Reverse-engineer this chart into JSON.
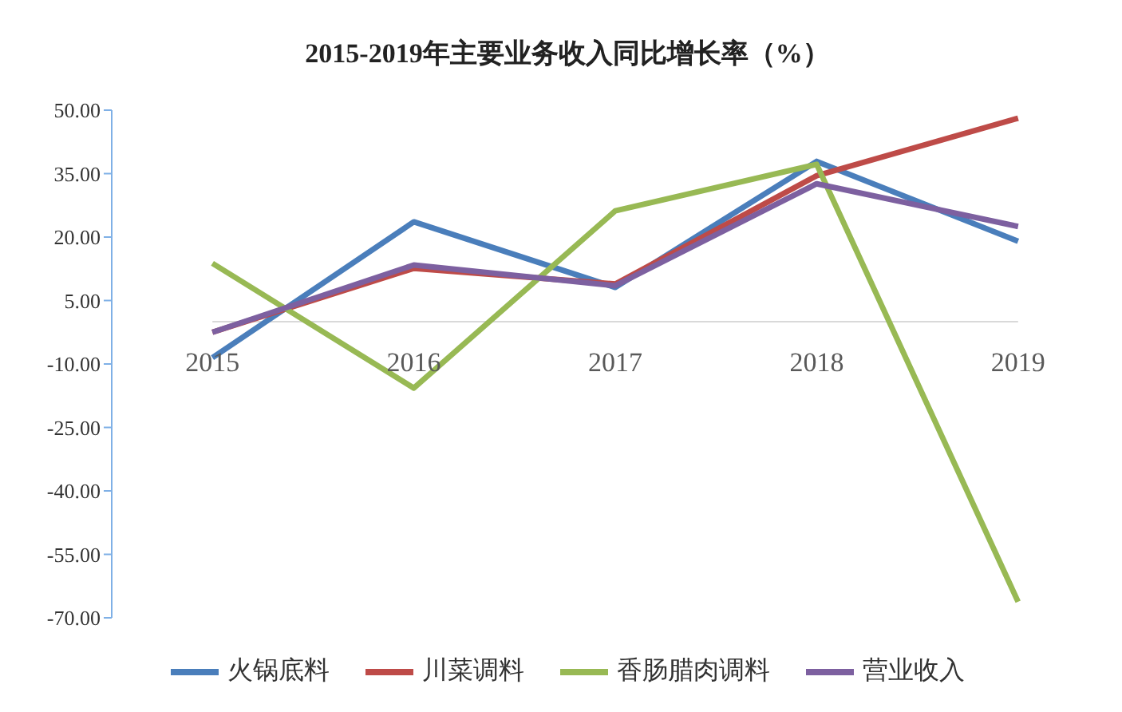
{
  "chart_data": {
    "type": "line",
    "title": "2015-2019年主要业务收入同比增长率（%）",
    "categories": [
      "2015",
      "2016",
      "2017",
      "2018",
      "2019"
    ],
    "series": [
      {
        "name": "火锅底料",
        "color": "#4a7ebb",
        "values": [
          -8.5,
          23.6,
          8.1,
          37.9,
          19
        ]
      },
      {
        "name": "川菜调料",
        "color": "#be4b48",
        "values": [
          -2.5,
          12.6,
          8.9,
          34.5,
          48.1
        ]
      },
      {
        "name": "香肠腊肉调料",
        "color": "#98b954",
        "values": [
          13.8,
          -15.7,
          26.2,
          37.2,
          -66.2
        ]
      },
      {
        "name": "营业收入",
        "color": "#7d60a0",
        "values": [
          -2.5,
          13.4,
          8.5,
          32.6,
          22.5
        ]
      }
    ],
    "ylim": [
      -70,
      50
    ],
    "yticks": [
      {
        "value": 50,
        "label": "50.00"
      },
      {
        "value": 35,
        "label": "35.00"
      },
      {
        "value": 20,
        "label": "20.00"
      },
      {
        "value": 5,
        "label": "5.00"
      },
      {
        "value": -10,
        "label": "-10.00"
      },
      {
        "value": -25,
        "label": "-25.00"
      },
      {
        "value": -40,
        "label": "-40.00"
      },
      {
        "value": -55,
        "label": "-55.00"
      },
      {
        "value": -70,
        "label": "-70.00"
      }
    ],
    "grid": false,
    "legend": "bottom",
    "marker": "none",
    "line_style": "solid"
  }
}
